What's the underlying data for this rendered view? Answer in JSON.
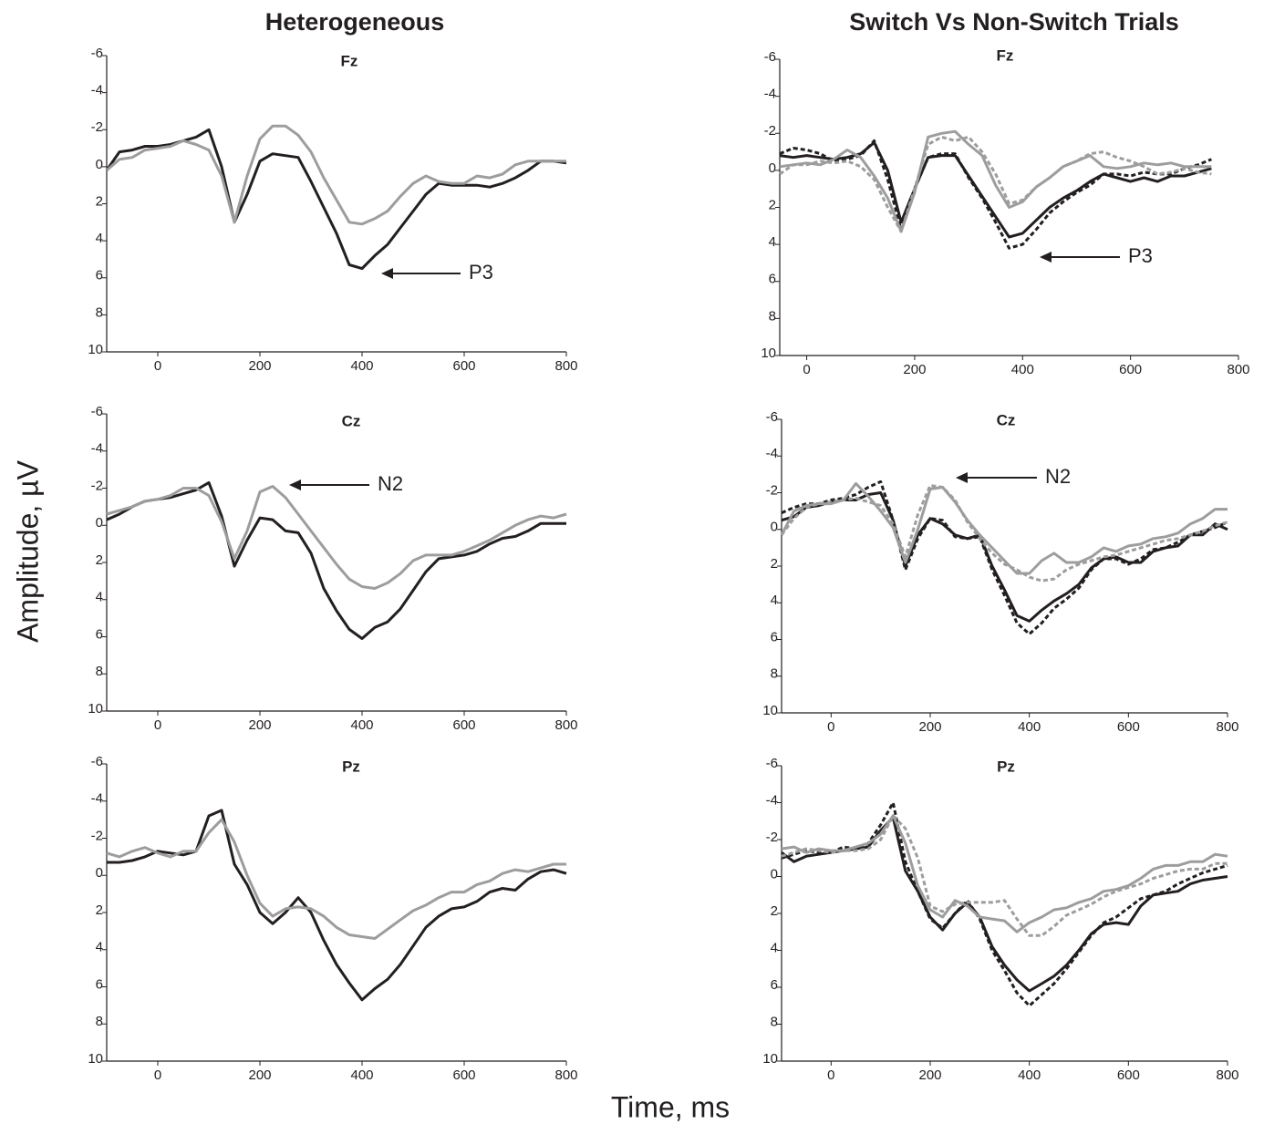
{
  "figure": {
    "column_titles": [
      "Heterogeneous",
      "Switch Vs Non-Switch Trials"
    ],
    "xlabel": "Time, ms",
    "ylabel": "Amplitude, µV"
  },
  "chart_data": [
    {
      "type": "line",
      "title": "Fz",
      "annotations": [
        "P3"
      ],
      "xlim": [
        -100,
        800
      ],
      "ylim": [
        10,
        -6
      ],
      "xticks": [
        0,
        200,
        400,
        600,
        800
      ],
      "yticks": [
        -6,
        -4,
        -2,
        0,
        2,
        4,
        6,
        8,
        10
      ],
      "x": [
        -100,
        -75,
        -50,
        -25,
        0,
        25,
        50,
        75,
        100,
        125,
        150,
        175,
        200,
        225,
        250,
        275,
        300,
        325,
        350,
        375,
        400,
        425,
        450,
        475,
        500,
        525,
        550,
        575,
        600,
        625,
        650,
        675,
        700,
        725,
        750,
        775,
        800
      ],
      "series": [
        {
          "color": "#231f20",
          "dash": "solid",
          "values": [
            0.2,
            -0.8,
            -0.9,
            -1.1,
            -1.1,
            -1.2,
            -1.4,
            -1.6,
            -2.0,
            0,
            3.0,
            1.5,
            -0.3,
            -0.7,
            -0.6,
            -0.5,
            0.8,
            2.2,
            3.6,
            5.3,
            5.5,
            4.8,
            4.2,
            3.3,
            2.4,
            1.5,
            0.9,
            1.0,
            1.0,
            1.0,
            1.1,
            0.9,
            0.6,
            0.2,
            -0.3,
            -0.3,
            -0.2
          ]
        },
        {
          "color": "#9d9d9d",
          "dash": "solid",
          "values": [
            0.2,
            -0.4,
            -0.5,
            -0.9,
            -1.0,
            -1.1,
            -1.4,
            -1.2,
            -0.9,
            0.5,
            3.0,
            0.5,
            -1.5,
            -2.2,
            -2.2,
            -1.7,
            -0.8,
            0.6,
            1.8,
            3.0,
            3.1,
            2.8,
            2.4,
            1.6,
            0.9,
            0.5,
            0.8,
            0.9,
            0.9,
            0.5,
            0.6,
            0.4,
            -0.1,
            -0.3,
            -0.3,
            -0.3,
            -0.3
          ]
        }
      ]
    },
    {
      "type": "line",
      "title": "Fz",
      "annotations": [
        "P3"
      ],
      "xlim": [
        -50,
        800
      ],
      "ylim": [
        10,
        -6
      ],
      "xticks": [
        0,
        200,
        400,
        600,
        800
      ],
      "yticks": [
        -6,
        -4,
        -2,
        0,
        2,
        4,
        6,
        8,
        10
      ],
      "x": [
        -50,
        -25,
        0,
        25,
        50,
        75,
        100,
        125,
        150,
        175,
        200,
        225,
        250,
        275,
        300,
        325,
        350,
        375,
        400,
        425,
        450,
        475,
        500,
        525,
        550,
        575,
        600,
        625,
        650,
        675,
        700,
        725,
        750
      ],
      "series": [
        {
          "color": "#231f20",
          "dash": "solid",
          "values": [
            -0.8,
            -0.7,
            -0.8,
            -0.7,
            -0.6,
            -0.7,
            -0.9,
            -1.5,
            0,
            2.8,
            1.0,
            -0.7,
            -0.8,
            -0.8,
            0.3,
            1.4,
            2.5,
            3.6,
            3.4,
            2.7,
            2.0,
            1.5,
            1.1,
            0.6,
            0.2,
            0.4,
            0.6,
            0.4,
            0.6,
            0.3,
            0.3,
            0.1,
            -0.1
          ]
        },
        {
          "color": "#231f20",
          "dash": "dashed",
          "values": [
            -0.9,
            -1.2,
            -1.1,
            -0.9,
            -0.5,
            -0.6,
            -0.8,
            -1.6,
            0.5,
            3.2,
            1.0,
            -0.7,
            -0.9,
            -0.9,
            0.4,
            1.5,
            2.8,
            4.2,
            4.0,
            3.2,
            2.3,
            1.7,
            1.2,
            0.8,
            0.2,
            0.2,
            0.3,
            0.1,
            0.2,
            0.2,
            -0.1,
            -0.3,
            -0.6
          ]
        },
        {
          "color": "#9d9d9d",
          "dash": "solid",
          "values": [
            -0.2,
            -0.3,
            -0.4,
            -0.3,
            -0.6,
            -1.1,
            -0.7,
            0.3,
            1.5,
            3.3,
            1.2,
            -1.8,
            -2.0,
            -2.1,
            -1.4,
            -0.8,
            0.8,
            2.0,
            1.7,
            0.9,
            0.4,
            -0.2,
            -0.5,
            -0.8,
            -0.2,
            -0.1,
            -0.2,
            -0.4,
            -0.3,
            -0.4,
            -0.2,
            -0.2,
            -0.2
          ]
        },
        {
          "color": "#9d9d9d",
          "dash": "dashed",
          "values": [
            0.2,
            -0.3,
            -0.3,
            -0.5,
            -0.4,
            -0.5,
            -0.2,
            0.5,
            2.0,
            3.3,
            1.0,
            -1.4,
            -1.8,
            -1.6,
            -1.8,
            -1.0,
            0.2,
            1.8,
            1.6,
            0.9,
            0.4,
            -0.2,
            -0.5,
            -0.9,
            -1.0,
            -0.7,
            -0.5,
            -0.2,
            0.2,
            0.1,
            -0.1,
            0.1,
            0.2
          ]
        }
      ]
    },
    {
      "type": "line",
      "title": "Cz",
      "annotations": [
        "N2"
      ],
      "xlim": [
        -100,
        800
      ],
      "ylim": [
        10,
        -6
      ],
      "xticks": [
        0,
        200,
        400,
        600,
        800
      ],
      "yticks": [
        -6,
        -4,
        -2,
        0,
        2,
        4,
        6,
        8,
        10
      ],
      "x": [
        -100,
        -75,
        -50,
        -25,
        0,
        25,
        50,
        75,
        100,
        125,
        150,
        175,
        200,
        225,
        250,
        275,
        300,
        325,
        350,
        375,
        400,
        425,
        450,
        475,
        500,
        525,
        550,
        575,
        600,
        625,
        650,
        675,
        700,
        725,
        750,
        775,
        800
      ],
      "series": [
        {
          "color": "#231f20",
          "dash": "solid",
          "values": [
            -0.3,
            -0.6,
            -1.0,
            -1.3,
            -1.4,
            -1.5,
            -1.7,
            -1.9,
            -2.3,
            -0.5,
            2.2,
            0.8,
            -0.4,
            -0.3,
            0.3,
            0.4,
            1.5,
            3.4,
            4.6,
            5.6,
            6.1,
            5.5,
            5.2,
            4.5,
            3.5,
            2.5,
            1.8,
            1.7,
            1.6,
            1.4,
            1.0,
            0.7,
            0.6,
            0.3,
            -0.1,
            -0.1,
            -0.1
          ]
        },
        {
          "color": "#9d9d9d",
          "dash": "solid",
          "values": [
            -0.6,
            -0.8,
            -1.0,
            -1.3,
            -1.4,
            -1.6,
            -2.0,
            -2.0,
            -1.6,
            -0.2,
            1.8,
            0.3,
            -1.8,
            -2.1,
            -1.5,
            -0.6,
            0.3,
            1.2,
            2.1,
            2.9,
            3.3,
            3.4,
            3.1,
            2.6,
            1.9,
            1.6,
            1.6,
            1.6,
            1.4,
            1.1,
            0.8,
            0.4,
            0,
            -0.3,
            -0.5,
            -0.4,
            -0.6
          ]
        }
      ]
    },
    {
      "type": "line",
      "title": "Cz",
      "annotations": [
        "N2"
      ],
      "xlim": [
        -100,
        800
      ],
      "ylim": [
        10,
        -6
      ],
      "xticks": [
        0,
        200,
        400,
        600,
        800
      ],
      "yticks": [
        -6,
        -4,
        -2,
        0,
        2,
        4,
        6,
        8,
        10
      ],
      "x": [
        -100,
        -75,
        -50,
        -25,
        0,
        25,
        50,
        75,
        100,
        125,
        150,
        175,
        200,
        225,
        250,
        275,
        300,
        325,
        350,
        375,
        400,
        425,
        450,
        475,
        500,
        525,
        550,
        575,
        600,
        625,
        650,
        675,
        700,
        725,
        750,
        775,
        800
      ],
      "series": [
        {
          "color": "#231f20",
          "dash": "solid",
          "values": [
            -0.5,
            -0.7,
            -1.2,
            -1.3,
            -1.5,
            -1.6,
            -1.6,
            -1.9,
            -2.0,
            -0.5,
            2.0,
            0.3,
            -0.6,
            -0.3,
            0.3,
            0.5,
            0.3,
            2.0,
            3.3,
            4.7,
            5.0,
            4.4,
            3.9,
            3.5,
            3.0,
            2.1,
            1.6,
            1.5,
            1.8,
            1.8,
            1.2,
            1.0,
            0.9,
            0.3,
            0.3,
            -0.3,
            0
          ]
        },
        {
          "color": "#231f20",
          "dash": "dashed",
          "values": [
            -0.9,
            -1.2,
            -1.4,
            -1.4,
            -1.6,
            -1.7,
            -1.9,
            -2.3,
            -2.6,
            -0.5,
            2.2,
            0.5,
            -0.6,
            -0.5,
            0.4,
            0.5,
            0.4,
            2.2,
            3.6,
            5.1,
            5.7,
            5.1,
            4.3,
            3.8,
            3.2,
            2.2,
            1.6,
            1.6,
            1.9,
            1.6,
            1.1,
            1.0,
            0.7,
            0.3,
            0.1,
            -0.1,
            -0.4
          ]
        },
        {
          "color": "#9d9d9d",
          "dash": "solid",
          "values": [
            0.3,
            -1.0,
            -1.3,
            -1.4,
            -1.4,
            -1.6,
            -2.5,
            -1.8,
            -1.0,
            -0.1,
            1.8,
            0,
            -2.2,
            -2.3,
            -1.5,
            -0.5,
            0.3,
            1.0,
            1.7,
            2.4,
            2.4,
            1.7,
            1.3,
            1.8,
            1.8,
            1.5,
            1.0,
            1.2,
            0.9,
            0.8,
            0.5,
            0.4,
            0.2,
            -0.3,
            -0.6,
            -1.1,
            -1.1
          ]
        },
        {
          "color": "#9d9d9d",
          "dash": "dashed",
          "values": [
            0.3,
            -0.6,
            -1.2,
            -1.4,
            -1.5,
            -1.6,
            -1.7,
            -1.5,
            -1.3,
            -0.3,
            1.5,
            -0.8,
            -2.4,
            -2.3,
            -1.6,
            -0.4,
            0.5,
            1.3,
            1.9,
            2.2,
            2.6,
            2.8,
            2.7,
            2.2,
            1.9,
            1.7,
            1.5,
            1.4,
            1.2,
            1.0,
            0.8,
            0.6,
            0.5,
            0.3,
            0.1,
            -0.2,
            -0.4
          ]
        }
      ]
    },
    {
      "type": "line",
      "title": "Pz",
      "annotations": [],
      "xlim": [
        -100,
        800
      ],
      "ylim": [
        10,
        -6
      ],
      "xticks": [
        0,
        200,
        400,
        600,
        800
      ],
      "yticks": [
        -6,
        -4,
        -2,
        0,
        2,
        4,
        6,
        8,
        10
      ],
      "x": [
        -100,
        -75,
        -50,
        -25,
        0,
        25,
        50,
        75,
        100,
        125,
        150,
        175,
        200,
        225,
        250,
        275,
        300,
        325,
        350,
        375,
        400,
        425,
        450,
        475,
        500,
        525,
        550,
        575,
        600,
        625,
        650,
        675,
        700,
        725,
        750,
        775,
        800
      ],
      "series": [
        {
          "color": "#231f20",
          "dash": "solid",
          "values": [
            -0.7,
            -0.7,
            -0.8,
            -1.0,
            -1.3,
            -1.2,
            -1.1,
            -1.3,
            -3.2,
            -3.5,
            -0.6,
            0.5,
            2.0,
            2.6,
            2.0,
            1.2,
            2.0,
            3.5,
            4.8,
            5.8,
            6.7,
            6.1,
            5.6,
            4.8,
            3.8,
            2.8,
            2.2,
            1.8,
            1.7,
            1.4,
            0.9,
            0.7,
            0.8,
            0.2,
            -0.2,
            -0.3,
            -0.1
          ]
        },
        {
          "color": "#9d9d9d",
          "dash": "solid",
          "values": [
            -1.2,
            -1.0,
            -1.3,
            -1.5,
            -1.2,
            -1.0,
            -1.3,
            -1.3,
            -2.3,
            -3.0,
            -1.8,
            0,
            1.5,
            2.2,
            1.8,
            1.7,
            1.8,
            2.2,
            2.8,
            3.2,
            3.3,
            3.4,
            2.9,
            2.4,
            1.9,
            1.6,
            1.2,
            0.9,
            0.9,
            0.5,
            0.3,
            -0.1,
            -0.3,
            -0.2,
            -0.4,
            -0.6,
            -0.6
          ]
        }
      ]
    },
    {
      "type": "line",
      "title": "Pz",
      "annotations": [],
      "xlim": [
        -100,
        800
      ],
      "ylim": [
        10,
        -6
      ],
      "xticks": [
        0,
        200,
        400,
        600,
        800
      ],
      "yticks": [
        -6,
        -4,
        -2,
        0,
        2,
        4,
        6,
        8,
        10
      ],
      "x": [
        -100,
        -75,
        -50,
        -25,
        0,
        25,
        50,
        75,
        100,
        125,
        150,
        175,
        200,
        225,
        250,
        275,
        300,
        325,
        350,
        375,
        400,
        425,
        450,
        475,
        500,
        525,
        550,
        575,
        600,
        625,
        650,
        675,
        700,
        725,
        750,
        775,
        800
      ],
      "series": [
        {
          "color": "#231f20",
          "dash": "solid",
          "values": [
            -1.3,
            -0.8,
            -1.1,
            -1.2,
            -1.3,
            -1.4,
            -1.5,
            -1.6,
            -2.5,
            -3.2,
            -0.3,
            0.8,
            2.2,
            2.9,
            2.0,
            1.4,
            2.2,
            3.8,
            4.8,
            5.6,
            6.2,
            5.8,
            5.4,
            4.8,
            4.0,
            3.1,
            2.6,
            2.5,
            2.6,
            1.6,
            1.0,
            0.9,
            0.8,
            0.4,
            0.2,
            0.1,
            0
          ]
        },
        {
          "color": "#231f20",
          "dash": "dashed",
          "values": [
            -1.0,
            -1.2,
            -1.4,
            -1.3,
            -1.3,
            -1.6,
            -1.5,
            -1.8,
            -2.8,
            -4.0,
            -0.8,
            0.8,
            2.3,
            2.8,
            2.0,
            1.3,
            2.3,
            4.0,
            5.1,
            6.3,
            7.0,
            6.4,
            5.8,
            5.0,
            4.1,
            3.2,
            2.5,
            2.2,
            1.7,
            1.2,
            1.0,
            0.8,
            0.4,
            0.1,
            -0.2,
            -0.4,
            -0.6
          ]
        },
        {
          "color": "#9d9d9d",
          "dash": "solid",
          "values": [
            -1.5,
            -1.6,
            -1.3,
            -1.5,
            -1.4,
            -1.4,
            -1.6,
            -1.8,
            -2.3,
            -3.3,
            -1.8,
            0.5,
            1.8,
            2.2,
            1.3,
            1.6,
            2.2,
            2.3,
            2.4,
            3.0,
            2.5,
            2.2,
            1.8,
            1.7,
            1.4,
            1.2,
            0.8,
            0.7,
            0.5,
            0.1,
            -0.4,
            -0.6,
            -0.6,
            -0.8,
            -0.8,
            -1.2,
            -1.1
          ]
        },
        {
          "color": "#9d9d9d",
          "dash": "dashed",
          "values": [
            -1.1,
            -1.3,
            -1.5,
            -1.4,
            -1.3,
            -1.4,
            -1.4,
            -1.5,
            -2.0,
            -3.3,
            -2.6,
            -1.0,
            1.6,
            1.9,
            1.5,
            1.4,
            1.4,
            1.4,
            1.3,
            2.3,
            3.2,
            3.2,
            2.7,
            2.1,
            1.8,
            1.5,
            1.1,
            0.8,
            0.6,
            0.4,
            0.1,
            -0.1,
            -0.3,
            -0.4,
            -0.4,
            -0.7,
            -0.7
          ]
        }
      ]
    }
  ]
}
